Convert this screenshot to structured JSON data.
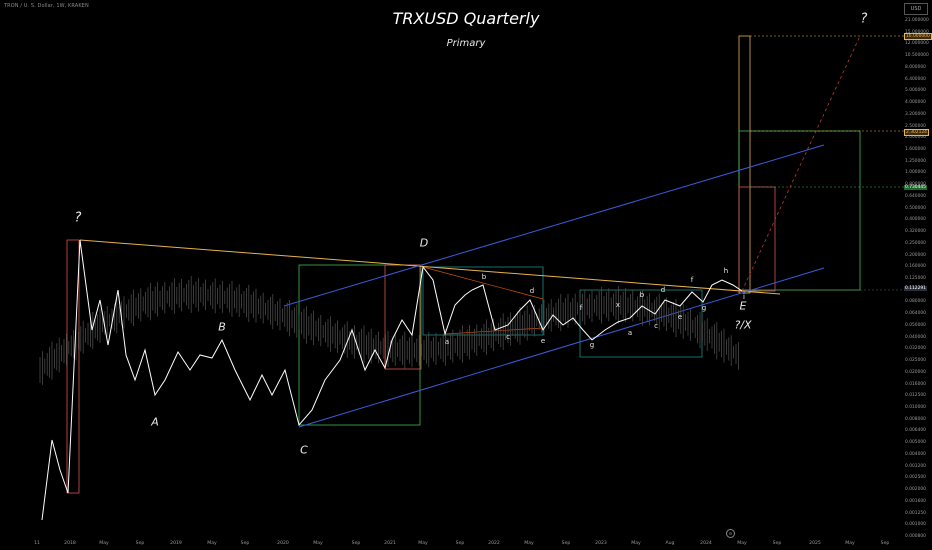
{
  "header": {
    "symbol_line": "TRON / U. S. Dollar, 1W, KRAKEN"
  },
  "title": "TRXUSD Quarterly",
  "subtitle": "Primary",
  "scale_button": "USD",
  "colors": {
    "price": "#ffffff",
    "trend": "#e8b24a",
    "channel": "#3b5bdb",
    "green_box": "#3fb950",
    "red_box": "#d9534f",
    "teal_box": "#1f8a8a",
    "dashed": "#c0392b",
    "axis_text": "#9a9a9a"
  },
  "y_axis": {
    "scale": "log",
    "labels": [
      "21.000000",
      "15.000000",
      "12.000000",
      "10.500000",
      "8.000000",
      "6.400000",
      "5.000000",
      "4.000000",
      "3.200000",
      "2.500000",
      "2.000000",
      "1.600000",
      "1.250000",
      "1.000000",
      "0.800000",
      "0.640000",
      "0.500000",
      "0.400000",
      "0.320000",
      "0.250000",
      "0.200000",
      "0.160000",
      "0.125000",
      "0.100000",
      "0.080000",
      "0.064000",
      "0.050000",
      "0.040000",
      "0.032000",
      "0.025000",
      "0.020000",
      "0.016000",
      "0.012500",
      "0.010000",
      "0.008000",
      "0.006400",
      "0.005000",
      "0.004000",
      "0.003200",
      "0.002500",
      "0.002000",
      "0.001600",
      "0.001250",
      "0.001000",
      "0.000800"
    ],
    "badges": [
      {
        "text": "16.000000",
        "kind": "orange"
      },
      {
        "text": "2.302124",
        "kind": "orange"
      },
      {
        "text": "0.730445",
        "kind": "green"
      },
      {
        "text": "0.112291",
        "kind": "dark"
      }
    ]
  },
  "x_axis": {
    "labels": [
      "11",
      "2018",
      "May",
      "Sep",
      "2019",
      "May",
      "Sep",
      "2020",
      "May",
      "Sep",
      "2021",
      "May",
      "Sep",
      "2022",
      "May",
      "Sep",
      "2023",
      "May",
      "Aug",
      "2024",
      "May",
      "Sep",
      "2025",
      "May",
      "Sep"
    ]
  },
  "wave_labels": {
    "major": [
      "?",
      "A",
      "B",
      "C",
      "D",
      "E",
      "?/X",
      "?"
    ],
    "minor": [
      "a",
      "b",
      "c",
      "d",
      "e",
      "f",
      "g",
      "x",
      "a",
      "b",
      "c",
      "d",
      "e",
      "f",
      "g",
      "h",
      "i"
    ]
  },
  "chart_data": {
    "type": "line",
    "title": "TRXUSD Quarterly",
    "subtitle": "Primary",
    "yscale": "log",
    "y_range": [
      0.0008,
      21
    ],
    "price_series_approx": [
      [
        "2017-11",
        0.0015
      ],
      [
        "2017-12",
        0.003
      ],
      [
        "2018-01",
        0.22
      ],
      [
        "2018-02",
        0.04
      ],
      [
        "2018-04",
        0.07
      ],
      [
        "2018-06",
        0.03
      ],
      [
        "2018-08",
        0.025
      ],
      [
        "2018-10",
        0.02
      ],
      [
        "2018-12",
        0.013
      ],
      [
        "2019-02",
        0.024
      ],
      [
        "2019-04",
        0.03
      ],
      [
        "2019-06",
        0.037
      ],
      [
        "2019-08",
        0.02
      ],
      [
        "2019-10",
        0.014
      ],
      [
        "2019-12",
        0.013
      ],
      [
        "2020-03",
        0.009
      ],
      [
        "2020-06",
        0.017
      ],
      [
        "2020-09",
        0.028
      ],
      [
        "2020-12",
        0.027
      ],
      [
        "2021-02",
        0.055
      ],
      [
        "2021-04",
        0.17
      ],
      [
        "2021-06",
        0.065
      ],
      [
        "2021-08",
        0.09
      ],
      [
        "2021-10",
        0.1
      ],
      [
        "2021-12",
        0.07
      ],
      [
        "2022-03",
        0.065
      ],
      [
        "2022-05",
        0.085
      ],
      [
        "2022-06",
        0.055
      ],
      [
        "2022-09",
        0.062
      ],
      [
        "2022-12",
        0.05
      ],
      [
        "2023-03",
        0.065
      ],
      [
        "2023-06",
        0.075
      ],
      [
        "2023-09",
        0.09
      ],
      [
        "2023-12",
        0.11
      ],
      [
        "2024-03",
        0.13
      ],
      [
        "2024-05",
        0.112
      ]
    ],
    "annotations": [
      "?",
      "A",
      "B",
      "C",
      "D",
      "E",
      "?/X",
      "?"
    ]
  }
}
